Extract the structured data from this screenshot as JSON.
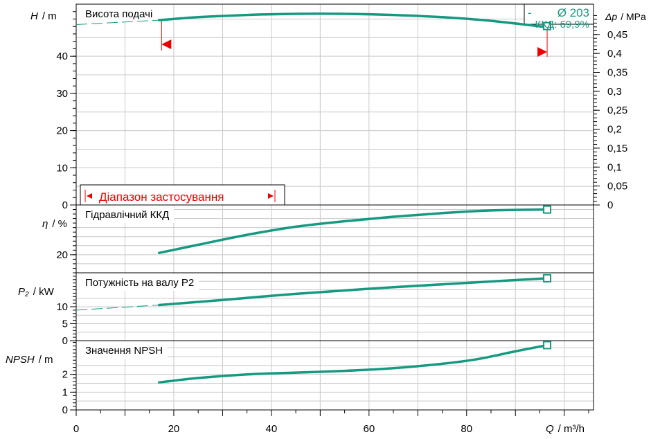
{
  "colors": {
    "curve": "#159a80",
    "range": "#ee0000",
    "grid": "#c8c8c8"
  },
  "chart_data": {
    "type": "line",
    "x_axis": {
      "symbol": "Q",
      "unit": "/ m³/h",
      "min": 0,
      "max": 106,
      "ticks": [
        "0",
        "20",
        "40",
        "60",
        "80"
      ],
      "tick_values": [
        0,
        20,
        40,
        60,
        80
      ],
      "minor_step": 5
    },
    "panels": [
      {
        "id": "head",
        "title": "Висота подачі",
        "ylabel_symbol": "H",
        "ylabel_unit": "/ m",
        "ymin": 0,
        "ymax": 54,
        "yticks": [
          "0",
          "10",
          "20",
          "30",
          "40"
        ],
        "ytick_values": [
          0,
          10,
          20,
          30,
          40
        ],
        "minor_step": 2,
        "right_axis": {
          "symbol": "Δp",
          "unit": "/ MPa",
          "ticks": [
            "0",
            "0,05",
            "0,1",
            "0,15",
            "0,2",
            "0,25",
            "0,3",
            "0,35",
            "0,4",
            "0,45"
          ],
          "tick_values": [
            0,
            0.05,
            0.1,
            0.15,
            0.2,
            0.25,
            0.3,
            0.35,
            0.4,
            0.45
          ],
          "max": 0.53
        },
        "series": [
          {
            "x": [
              17,
              25,
              35,
              45,
              55,
              65,
              75,
              85,
              96.5
            ],
            "y": [
              49.7,
              50.5,
              51.1,
              51.4,
              51.4,
              51.1,
              50.5,
              49.5,
              47.8
            ]
          }
        ],
        "extension": {
          "x": [
            0,
            17
          ],
          "y": [
            48.5,
            49.7
          ]
        },
        "op_point": {
          "x": 96.5,
          "y": 48.1
        },
        "range_limits": [
          17.5,
          96.5
        ],
        "legend": {
          "diameter": "Ø 203",
          "dash": "-",
          "eff": "ККД: 69,9%"
        },
        "range_label": "Діапазон застосування"
      },
      {
        "id": "eff",
        "title": "Гідравлічний ККД",
        "ylabel_symbol": "η",
        "ylabel_unit": "/ %",
        "ymin": 0,
        "ymax": 75,
        "yticks": [
          "20"
        ],
        "ytick_values": [
          20
        ],
        "minor_step": 5,
        "series": [
          {
            "x": [
              17,
              25,
              35,
              45,
              55,
              65,
              75,
              85,
              96.5
            ],
            "y": [
              22,
              31,
              42,
              51,
              57,
              62,
              66,
              69,
              70
            ]
          }
        ],
        "op_point": {
          "x": 96.5,
          "y": 69.9
        }
      },
      {
        "id": "power",
        "title": "Потужність на валу P2",
        "ylabel_symbol": "P₂",
        "ylabel_unit": "/ kW",
        "ymin": 0,
        "ymax": 20,
        "yticks": [
          "0",
          "5",
          "10"
        ],
        "ytick_values": [
          0,
          5,
          10
        ],
        "minor_step": 1,
        "series": [
          {
            "x": [
              17,
              30,
              45,
              60,
              75,
              96.5
            ],
            "y": [
              10.5,
              12.0,
              13.8,
              15.3,
              16.6,
              18.4
            ]
          }
        ],
        "extension": {
          "x": [
            0,
            17
          ],
          "y": [
            9.0,
            10.5
          ]
        },
        "op_point": {
          "x": 96.5,
          "y": 18.4
        }
      },
      {
        "id": "npsh",
        "title": "Значення NPSH",
        "ylabel_symbol": "NPSH",
        "ylabel_unit": "/ m",
        "ymin": 0,
        "ymax": 3.9,
        "yticks": [
          "0",
          "1",
          "2"
        ],
        "ytick_values": [
          0,
          1,
          2
        ],
        "minor_step": 0.2,
        "series": [
          {
            "x": [
              17,
              25,
              35,
              45,
              55,
              65,
              75,
              82,
              90,
              96.5
            ],
            "y": [
              1.55,
              1.8,
              2.0,
              2.1,
              2.2,
              2.35,
              2.6,
              2.85,
              3.3,
              3.65
            ]
          }
        ],
        "op_point": {
          "x": 96.5,
          "y": 3.65
        }
      }
    ]
  }
}
